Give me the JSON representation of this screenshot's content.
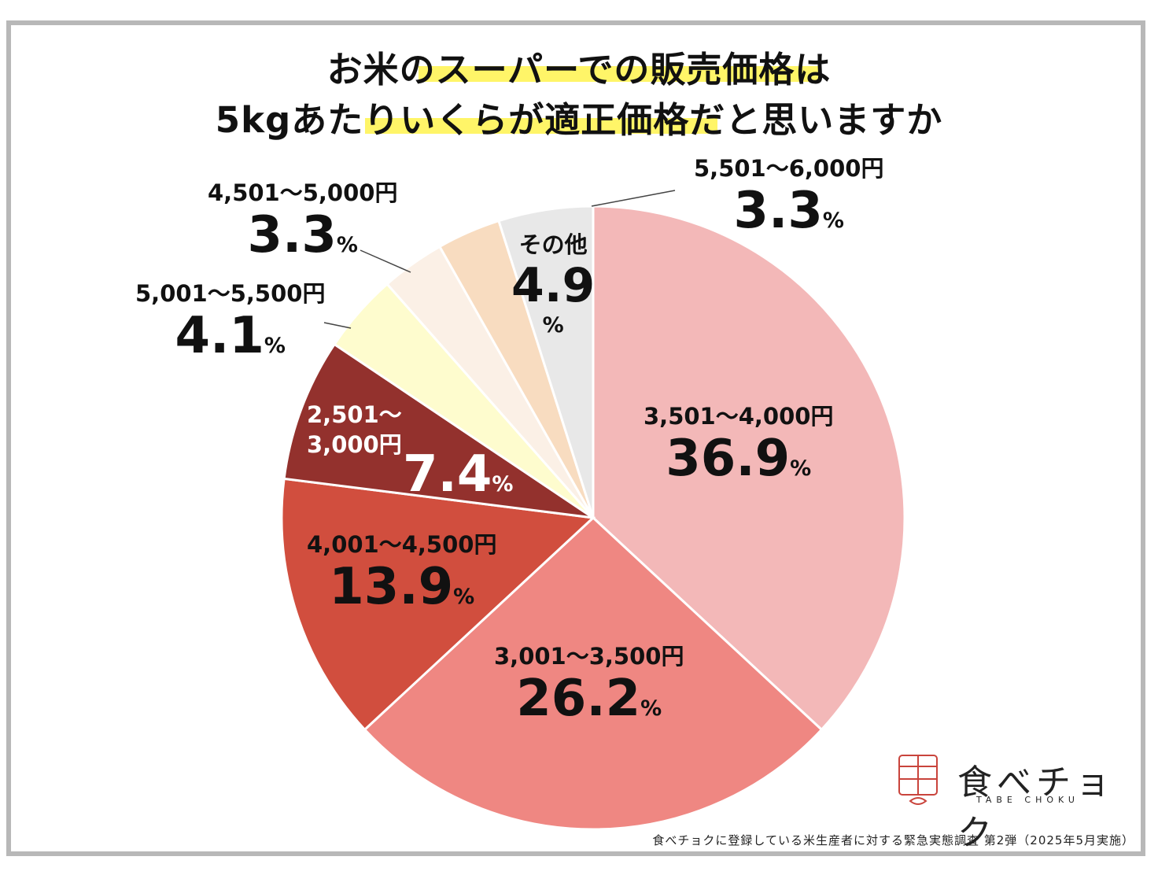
{
  "title": {
    "line1": "お米のスーパーでの販売価格は",
    "line2": "5kgあたりいくらが適正価格だと思いますか"
  },
  "chart_data": {
    "type": "pie",
    "unit": "%",
    "categories": [
      "3,501〜4,000円",
      "3,001〜3,500円",
      "4,001〜4,500円",
      "2,501〜3,000円",
      "5,001〜5,500円",
      "4,501〜5,000円",
      "5,501〜6,000円",
      "その他"
    ],
    "values": [
      36.9,
      26.2,
      13.9,
      7.4,
      4.1,
      3.3,
      3.3,
      4.9
    ],
    "colors": [
      "#f3b8b8",
      "#ef8782",
      "#d14e3e",
      "#93312d",
      "#fefcce",
      "#fbf0e6",
      "#f8dcc0",
      "#e8e8e8"
    ]
  },
  "labels": [
    {
      "cat": "3,501〜4,000円",
      "val": "36.9",
      "pct": "%"
    },
    {
      "cat": "3,001〜3,500円",
      "val": "26.2",
      "pct": "%"
    },
    {
      "cat": "4,001〜4,500円",
      "val": "13.9",
      "pct": "%"
    },
    {
      "cat": "2,501〜",
      "cat2": "3,000円",
      "val": "7.4",
      "pct": "%"
    },
    {
      "cat": "5,001〜5,500円",
      "val": "4.1",
      "pct": "%"
    },
    {
      "cat": "4,501〜5,000円",
      "val": "3.3",
      "pct": "%"
    },
    {
      "cat": "5,501〜6,000円",
      "val": "3.3",
      "pct": "%"
    },
    {
      "cat": "その他",
      "val": "4.9",
      "pct": "%"
    }
  ],
  "logo": {
    "text": "食べチョク",
    "sub": "TABE CHOKU"
  },
  "footer": "食べチョクに登録している米生産者に対する緊急実態調査 第2弾（2025年5月実施）"
}
